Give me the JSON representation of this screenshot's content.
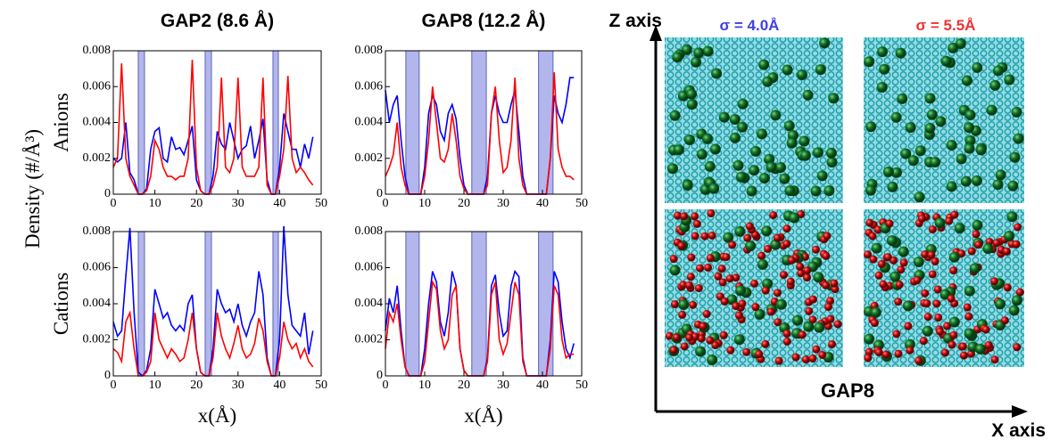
{
  "figure": {
    "y_label": "Density (#/Å³)",
    "z_axis": "Z axis",
    "x_axis": "X axis",
    "sigma_left": "σ = 4.0Å",
    "sigma_right": "σ = 5.5Å",
    "snapshot_label": "GAP8"
  },
  "chart_data": [
    {
      "type": "line",
      "title": "GAP2 (8.6 Å)",
      "ylabel": "Anions",
      "x": [
        0,
        1,
        2,
        3,
        4,
        5,
        6,
        7,
        8,
        9,
        10,
        11,
        12,
        13,
        14,
        15,
        16,
        17,
        18,
        19,
        20,
        21,
        22,
        23,
        24,
        25,
        26,
        27,
        28,
        29,
        30,
        31,
        32,
        33,
        34,
        35,
        36,
        37,
        38,
        39,
        40,
        41,
        42,
        43,
        44,
        45,
        46,
        47,
        48
      ],
      "series": [
        {
          "color": "#0000ff",
          "values": [
            0.002,
            0.0018,
            0.002,
            0.004,
            0.0012,
            0.0008,
            0,
            0,
            0.0003,
            0.0025,
            0.0035,
            0.0037,
            0.002,
            0.0018,
            0.0032,
            0.0025,
            0.0026,
            0.0022,
            0.003,
            0.0038,
            0.0008,
            0.0002,
            0,
            0,
            0.001,
            0.0035,
            0.0028,
            0.0025,
            0.004,
            0.003,
            0.002,
            0.0025,
            0.0027,
            0.0038,
            0.002,
            0.003,
            0.0042,
            0.0008,
            0,
            0,
            0.0015,
            0.0045,
            0.0035,
            0.0025,
            0.0025,
            0.0015,
            0.0028,
            0.002,
            0.0032
          ]
        },
        {
          "color": "#ff0000",
          "values": [
            0.0015,
            0.002,
            0.0073,
            0.002,
            0.001,
            0.0005,
            0,
            0,
            0.0002,
            0.001,
            0.003,
            0.0025,
            0.0015,
            0.001,
            0.001,
            0.0008,
            0.001,
            0.001,
            0.002,
            0.0075,
            0.0015,
            0.0002,
            0,
            0,
            0.0005,
            0.0015,
            0.0065,
            0.0015,
            0.0012,
            0.002,
            0.0065,
            0.0015,
            0.001,
            0.001,
            0.001,
            0.0015,
            0.0065,
            0.0005,
            0,
            0,
            0.001,
            0.0025,
            0.0066,
            0.002,
            0.0012,
            0.0015,
            0.0012,
            0.0008,
            0.0005
          ]
        }
      ],
      "shaded_regions": [
        [
          6,
          7.5
        ],
        [
          22.1,
          23.6
        ],
        [
          38.4,
          39.7
        ]
      ],
      "xlim": [
        0,
        50
      ],
      "xticks": [
        0,
        10,
        20,
        30,
        40,
        50
      ],
      "ylim": [
        0,
        0.008
      ],
      "yticks": [
        0,
        0.002,
        0.004,
        0.006,
        0.008
      ]
    },
    {
      "type": "line",
      "title": "GAP8 (12.2 Å)",
      "x": [
        0,
        1,
        2,
        3,
        4,
        5,
        6,
        7,
        8,
        9,
        10,
        11,
        12,
        13,
        14,
        15,
        16,
        17,
        18,
        19,
        20,
        21,
        22,
        23,
        24,
        25,
        26,
        27,
        28,
        29,
        30,
        31,
        32,
        33,
        34,
        35,
        36,
        37,
        38,
        39,
        40,
        41,
        42,
        43,
        44,
        45,
        46,
        47,
        48
      ],
      "series": [
        {
          "color": "#0000ff",
          "values": [
            0.0058,
            0.004,
            0.005,
            0.0055,
            0.003,
            0.001,
            0,
            0,
            0,
            0,
            0.0015,
            0.0045,
            0.0055,
            0.005,
            0.0035,
            0.003,
            0.0045,
            0.005,
            0.0042,
            0.002,
            0.0005,
            0,
            0,
            0,
            0,
            0,
            0.001,
            0.0045,
            0.0055,
            0.0045,
            0.004,
            0.004,
            0.005,
            0.0058,
            0.0035,
            0.001,
            0,
            0,
            0,
            0,
            0,
            0,
            0.002,
            0.0055,
            0.0045,
            0.004,
            0.005,
            0.0065,
            0.0065
          ]
        },
        {
          "color": "#ff0000",
          "values": [
            0.001,
            0.0015,
            0.0022,
            0.004,
            0.0015,
            0.0005,
            0,
            0,
            0,
            0,
            0.001,
            0.003,
            0.006,
            0.004,
            0.002,
            0.0018,
            0.0025,
            0.0045,
            0.003,
            0.001,
            0.0003,
            0,
            0,
            0,
            0,
            0,
            0.0005,
            0.0045,
            0.006,
            0.003,
            0.0012,
            0.0015,
            0.003,
            0.0065,
            0.002,
            0.0005,
            0,
            0,
            0,
            0,
            0,
            0,
            0.002,
            0.0068,
            0.0025,
            0.0015,
            0.001,
            0.001,
            0.0008
          ]
        }
      ],
      "shaded_regions": [
        [
          5.2,
          8.6
        ],
        [
          22,
          25.7
        ],
        [
          39,
          42.7
        ]
      ],
      "xlim": [
        0,
        50
      ],
      "xticks": [
        0,
        10,
        20,
        30,
        40,
        50
      ],
      "ylim": [
        0,
        0.008
      ],
      "yticks": [
        0,
        0.002,
        0.004,
        0.006,
        0.008
      ]
    },
    {
      "type": "line",
      "ylabel": "Cations",
      "xlabel": "x(Å)",
      "x": [
        0,
        1,
        2,
        3,
        4,
        5,
        6,
        7,
        8,
        9,
        10,
        11,
        12,
        13,
        14,
        15,
        16,
        17,
        18,
        19,
        20,
        21,
        22,
        23,
        24,
        25,
        26,
        27,
        28,
        29,
        30,
        31,
        32,
        33,
        34,
        35,
        36,
        37,
        38,
        39,
        40,
        41,
        42,
        43,
        44,
        45,
        46,
        47,
        48
      ],
      "series": [
        {
          "color": "#0000ff",
          "values": [
            0.003,
            0.0022,
            0.0025,
            0.0055,
            0.0082,
            0.0035,
            0.0002,
            0,
            0.0003,
            0.0015,
            0.0048,
            0.004,
            0.0032,
            0.0035,
            0.0028,
            0.0025,
            0.0028,
            0.0025,
            0.004,
            0.0045,
            0.0015,
            0.0002,
            0,
            0,
            0.0015,
            0.0048,
            0.004,
            0.0035,
            0.0037,
            0.003,
            0.004,
            0.0028,
            0.0022,
            0.003,
            0.0035,
            0.0058,
            0.0045,
            0.001,
            0,
            0,
            0.002,
            0.0083,
            0.0045,
            0.0028,
            0.0025,
            0.0022,
            0.0035,
            0.0012,
            0.0025
          ]
        },
        {
          "color": "#ff0000",
          "values": [
            0.0015,
            0.0013,
            0.0008,
            0.003,
            0.0035,
            0.0015,
            0,
            0,
            0.0002,
            0.0008,
            0.0035,
            0.002,
            0.0015,
            0.001,
            0.0015,
            0.0012,
            0.0008,
            0.001,
            0.002,
            0.0035,
            0.0015,
            0.0002,
            0,
            0,
            0.001,
            0.0035,
            0.0022,
            0.0015,
            0.001,
            0.0018,
            0.0028,
            0.0015,
            0.001,
            0.0012,
            0.0018,
            0.0032,
            0.0025,
            0.0008,
            0,
            0,
            0.001,
            0.003,
            0.002,
            0.0015,
            0.0018,
            0.001,
            0.0015,
            0.0008,
            0.0005
          ]
        }
      ],
      "shaded_regions": [
        [
          6,
          7.5
        ],
        [
          22.1,
          23.6
        ],
        [
          38.4,
          39.7
        ]
      ],
      "xlim": [
        0,
        50
      ],
      "xticks": [
        0,
        10,
        20,
        30,
        40,
        50
      ],
      "ylim": [
        0,
        0.008
      ],
      "yticks": [
        0,
        0.002,
        0.004,
        0.006,
        0.008
      ]
    },
    {
      "type": "line",
      "xlabel": "x(Å)",
      "x": [
        0,
        1,
        2,
        3,
        4,
        5,
        6,
        7,
        8,
        9,
        10,
        11,
        12,
        13,
        14,
        15,
        16,
        17,
        18,
        19,
        20,
        21,
        22,
        23,
        24,
        25,
        26,
        27,
        28,
        29,
        30,
        31,
        32,
        33,
        34,
        35,
        36,
        37,
        38,
        39,
        40,
        41,
        42,
        43,
        44,
        45,
        46,
        47,
        48
      ],
      "series": [
        {
          "color": "#0000ff",
          "values": [
            0.0025,
            0.0043,
            0.0035,
            0.005,
            0.0025,
            0.0005,
            0,
            0,
            0,
            0,
            0.0015,
            0.004,
            0.0058,
            0.0052,
            0.003,
            0.0022,
            0.0035,
            0.0058,
            0.005,
            0.0015,
            0.0003,
            0,
            0,
            0,
            0,
            0,
            0.001,
            0.005,
            0.0056,
            0.0035,
            0.0022,
            0.0025,
            0.005,
            0.0058,
            0.0055,
            0.001,
            0,
            0,
            0,
            0,
            0,
            0,
            0.002,
            0.0058,
            0.0052,
            0.003,
            0.0015,
            0.001,
            0.0018
          ]
        },
        {
          "color": "#ff0000",
          "values": [
            0.0015,
            0.0035,
            0.003,
            0.004,
            0.002,
            0.0005,
            0,
            0,
            0,
            0,
            0.0008,
            0.003,
            0.0052,
            0.0048,
            0.0025,
            0.0015,
            0.002,
            0.0045,
            0.005,
            0.0015,
            0.0003,
            0,
            0,
            0,
            0,
            0,
            0.0008,
            0.0045,
            0.0052,
            0.002,
            0.0012,
            0.0018,
            0.0035,
            0.0052,
            0.0045,
            0.0008,
            0,
            0,
            0,
            0,
            0,
            0,
            0.0015,
            0.005,
            0.0045,
            0.002,
            0.001,
            0.0012,
            0.0012
          ]
        }
      ],
      "shaded_regions": [
        [
          5.2,
          8.6
        ],
        [
          22,
          25.7
        ],
        [
          39,
          42.7
        ]
      ],
      "xlim": [
        0,
        50
      ],
      "xticks": [
        0,
        10,
        20,
        30,
        40,
        50
      ],
      "ylim": [
        0,
        0.008
      ],
      "yticks": [
        0,
        0.002,
        0.004,
        0.006,
        0.008
      ]
    }
  ]
}
